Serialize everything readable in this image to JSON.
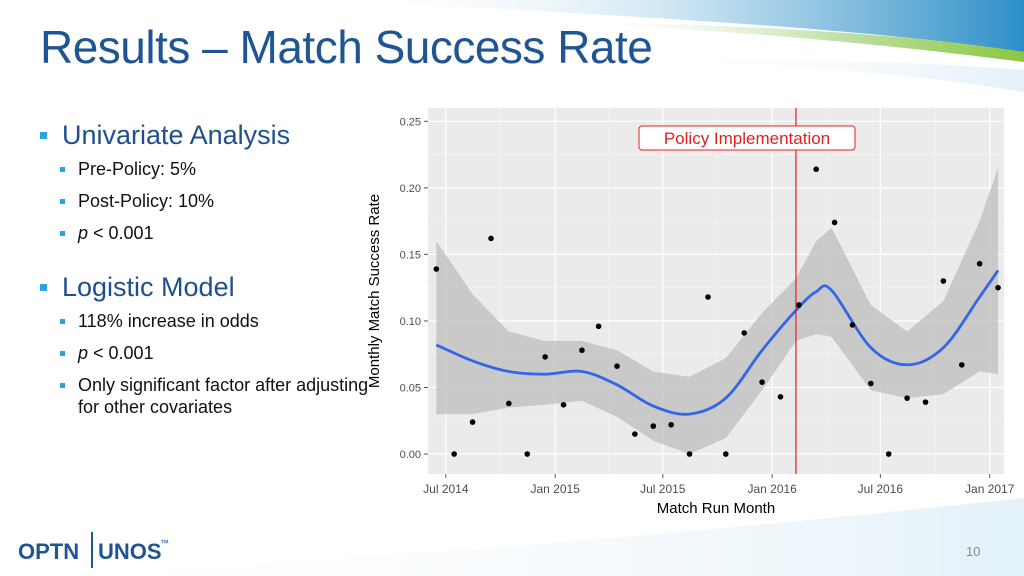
{
  "slide": {
    "title": "Results – Match Success Rate",
    "page_number": "10"
  },
  "bullets": [
    {
      "heading": "Univariate Analysis",
      "items": [
        {
          "prefix": "",
          "text": "Pre-Policy: 5%"
        },
        {
          "prefix": "",
          "text": "Post-Policy: 10%"
        },
        {
          "prefix": "p",
          "text": " < 0.001"
        }
      ]
    },
    {
      "heading": "Logistic Model",
      "items": [
        {
          "prefix": "",
          "text": "118% increase in odds"
        },
        {
          "prefix": "p",
          "text": " < 0.001"
        },
        {
          "prefix": "",
          "text": "Only significant factor after adjusting for other covariates"
        }
      ]
    }
  ],
  "logo": {
    "left_text": "OPTN",
    "right_text": "UNOS",
    "mark": "™"
  },
  "colors": {
    "title": "#1f5592",
    "bullet": "#2aa3de",
    "smooth_line": "#3366e6",
    "band": "#bdbdbd",
    "policy_line": "#e02020",
    "panel": "#ebebeb",
    "logo": "#1f5592"
  },
  "chart_data": {
    "type": "scatter",
    "xlabel": "Match Run Month",
    "ylabel": "Monthly Match Success Rate",
    "xlim": [
      "2014-06-01",
      "2017-01-25"
    ],
    "ylim": [
      -0.015,
      0.26
    ],
    "x_ticks": [
      {
        "date": "2014-07-01",
        "label": "Jul 2014"
      },
      {
        "date": "2015-01-01",
        "label": "Jan 2015"
      },
      {
        "date": "2015-07-01",
        "label": "Jul 2015"
      },
      {
        "date": "2016-01-01",
        "label": "Jan 2016"
      },
      {
        "date": "2016-07-01",
        "label": "Jul 2016"
      },
      {
        "date": "2017-01-01",
        "label": "Jan 2017"
      }
    ],
    "y_ticks": [
      {
        "value": 0.0,
        "label": "0.00"
      },
      {
        "value": 0.05,
        "label": "0.05"
      },
      {
        "value": 0.1,
        "label": "0.10"
      },
      {
        "value": 0.15,
        "label": "0.15"
      },
      {
        "value": 0.2,
        "label": "0.20"
      },
      {
        "value": 0.25,
        "label": "0.25"
      }
    ],
    "grid": true,
    "annotation": {
      "date": "2016-02-10",
      "label": "Policy Implementation"
    },
    "points": [
      {
        "x": "2014-06-15",
        "y": 0.139
      },
      {
        "x": "2014-07-15",
        "y": 0.0
      },
      {
        "x": "2014-08-15",
        "y": 0.024
      },
      {
        "x": "2014-09-15",
        "y": 0.162
      },
      {
        "x": "2014-10-15",
        "y": 0.038
      },
      {
        "x": "2014-11-15",
        "y": 0.0
      },
      {
        "x": "2014-12-15",
        "y": 0.073
      },
      {
        "x": "2015-01-15",
        "y": 0.037
      },
      {
        "x": "2015-02-15",
        "y": 0.078
      },
      {
        "x": "2015-03-15",
        "y": 0.096
      },
      {
        "x": "2015-04-15",
        "y": 0.066
      },
      {
        "x": "2015-05-15",
        "y": 0.015
      },
      {
        "x": "2015-06-15",
        "y": 0.021
      },
      {
        "x": "2015-07-15",
        "y": 0.022
      },
      {
        "x": "2015-08-15",
        "y": 0.0
      },
      {
        "x": "2015-09-15",
        "y": 0.118
      },
      {
        "x": "2015-10-15",
        "y": 0.0
      },
      {
        "x": "2015-11-15",
        "y": 0.091
      },
      {
        "x": "2015-12-15",
        "y": 0.054
      },
      {
        "x": "2016-01-15",
        "y": 0.043
      },
      {
        "x": "2016-02-15",
        "y": 0.112
      },
      {
        "x": "2016-03-15",
        "y": 0.214
      },
      {
        "x": "2016-04-15",
        "y": 0.174
      },
      {
        "x": "2016-05-15",
        "y": 0.097
      },
      {
        "x": "2016-06-15",
        "y": 0.053
      },
      {
        "x": "2016-07-15",
        "y": 0.0
      },
      {
        "x": "2016-08-15",
        "y": 0.042
      },
      {
        "x": "2016-09-15",
        "y": 0.039
      },
      {
        "x": "2016-10-15",
        "y": 0.13
      },
      {
        "x": "2016-11-15",
        "y": 0.067
      },
      {
        "x": "2016-12-15",
        "y": 0.143
      },
      {
        "x": "2017-01-15",
        "y": 0.125
      }
    ],
    "smooth": [
      {
        "x": "2014-06-15",
        "y": 0.082,
        "lo": 0.03,
        "hi": 0.16
      },
      {
        "x": "2014-08-15",
        "y": 0.07,
        "lo": 0.03,
        "hi": 0.12
      },
      {
        "x": "2014-10-15",
        "y": 0.062,
        "lo": 0.035,
        "hi": 0.092
      },
      {
        "x": "2014-12-15",
        "y": 0.06,
        "lo": 0.037,
        "hi": 0.085
      },
      {
        "x": "2015-02-15",
        "y": 0.062,
        "lo": 0.04,
        "hi": 0.085
      },
      {
        "x": "2015-04-15",
        "y": 0.052,
        "lo": 0.028,
        "hi": 0.078
      },
      {
        "x": "2015-06-15",
        "y": 0.036,
        "lo": 0.01,
        "hi": 0.062
      },
      {
        "x": "2015-08-15",
        "y": 0.03,
        "lo": 0.0,
        "hi": 0.058
      },
      {
        "x": "2015-10-15",
        "y": 0.042,
        "lo": 0.012,
        "hi": 0.072
      },
      {
        "x": "2015-12-15",
        "y": 0.078,
        "lo": 0.048,
        "hi": 0.106
      },
      {
        "x": "2016-02-10",
        "y": 0.108,
        "lo": 0.085,
        "hi": 0.132
      },
      {
        "x": "2016-03-15",
        "y": 0.122,
        "lo": 0.09,
        "hi": 0.16
      },
      {
        "x": "2016-04-10",
        "y": 0.123,
        "lo": 0.088,
        "hi": 0.17
      },
      {
        "x": "2016-06-15",
        "y": 0.08,
        "lo": 0.048,
        "hi": 0.112
      },
      {
        "x": "2016-08-15",
        "y": 0.067,
        "lo": 0.042,
        "hi": 0.092
      },
      {
        "x": "2016-10-15",
        "y": 0.08,
        "lo": 0.045,
        "hi": 0.115
      },
      {
        "x": "2016-12-15",
        "y": 0.118,
        "lo": 0.062,
        "hi": 0.175
      },
      {
        "x": "2017-01-15",
        "y": 0.138,
        "lo": 0.06,
        "hi": 0.215
      }
    ]
  }
}
